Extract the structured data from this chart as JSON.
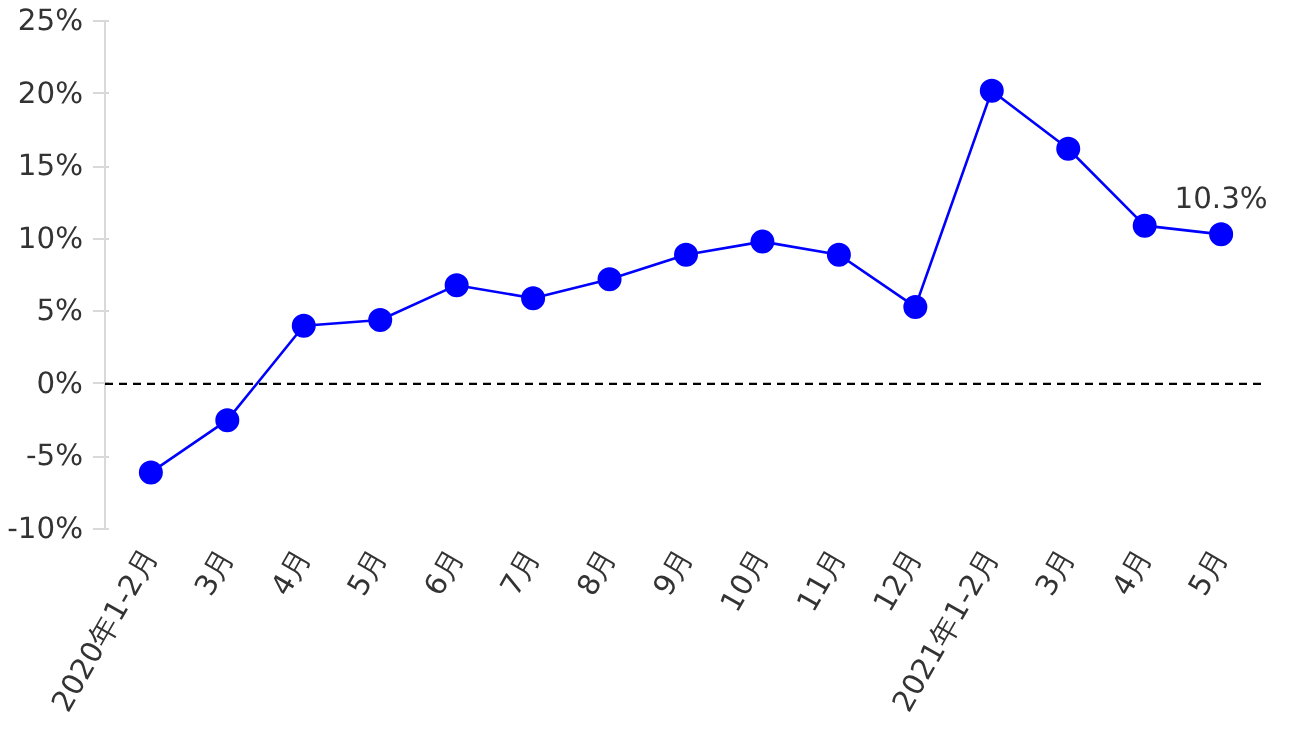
{
  "chart_data": {
    "type": "line",
    "categories": [
      "2020年1-2月",
      "3月",
      "4月",
      "5月",
      "6月",
      "7月",
      "8月",
      "9月",
      "10月",
      "11月",
      "12月",
      "2021年1-2月",
      "3月",
      "4月",
      "5月"
    ],
    "series": [
      {
        "color": "#0000ff",
        "values": [
          -6.1,
          -2.5,
          4.0,
          4.4,
          6.8,
          5.9,
          7.2,
          8.9,
          9.8,
          8.9,
          5.3,
          20.2,
          16.2,
          10.9,
          10.3
        ],
        "value_labels": [
          null,
          null,
          null,
          null,
          null,
          null,
          null,
          null,
          null,
          null,
          null,
          null,
          null,
          null,
          "10.3%"
        ]
      }
    ],
    "ylim": [
      -10,
      25
    ],
    "yticks": [
      {
        "value": -10,
        "label": "-10%"
      },
      {
        "value": -5,
        "label": "-5%"
      },
      {
        "value": 0,
        "label": "0%"
      },
      {
        "value": 5,
        "label": "5%"
      },
      {
        "value": 10,
        "label": "10%"
      },
      {
        "value": 15,
        "label": "15%"
      },
      {
        "value": 20,
        "label": "20%"
      },
      {
        "value": 25,
        "label": "25%"
      }
    ],
    "ref_lines": [
      {
        "axis": "y",
        "value": 0,
        "label": null,
        "color": "#000000",
        "line_style": "dashed"
      }
    ],
    "grid": false,
    "marker": "circle",
    "line_style": "solid"
  }
}
